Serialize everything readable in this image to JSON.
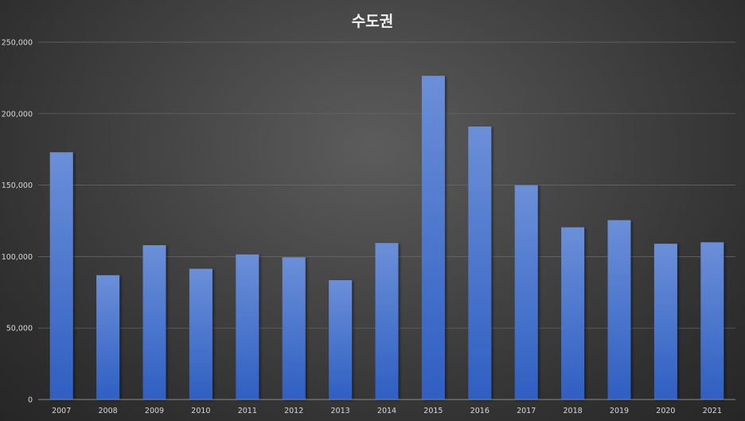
{
  "chart_data": {
    "type": "bar",
    "title": "수도권",
    "xlabel": "",
    "ylabel": "",
    "categories": [
      "2007",
      "2008",
      "2009",
      "2010",
      "2011",
      "2012",
      "2013",
      "2014",
      "2015",
      "2016",
      "2017",
      "2018",
      "2019",
      "2020",
      "2021"
    ],
    "values": [
      173000,
      87000,
      108000,
      91500,
      101500,
      99500,
      83500,
      109500,
      226500,
      191000,
      150000,
      120500,
      125500,
      109000,
      110000
    ],
    "ylim": [
      0,
      250000
    ],
    "y_ticks": [
      0,
      50000,
      100000,
      150000,
      200000,
      250000
    ],
    "y_tick_labels": [
      "0",
      "50,000",
      "100,000",
      "150,000",
      "200,000",
      "250,000"
    ],
    "grid": true,
    "legend": "none",
    "colors": {
      "bar_top": "#6b8fd8",
      "bar_bottom": "#2f5fc2",
      "background": "#404040"
    }
  }
}
